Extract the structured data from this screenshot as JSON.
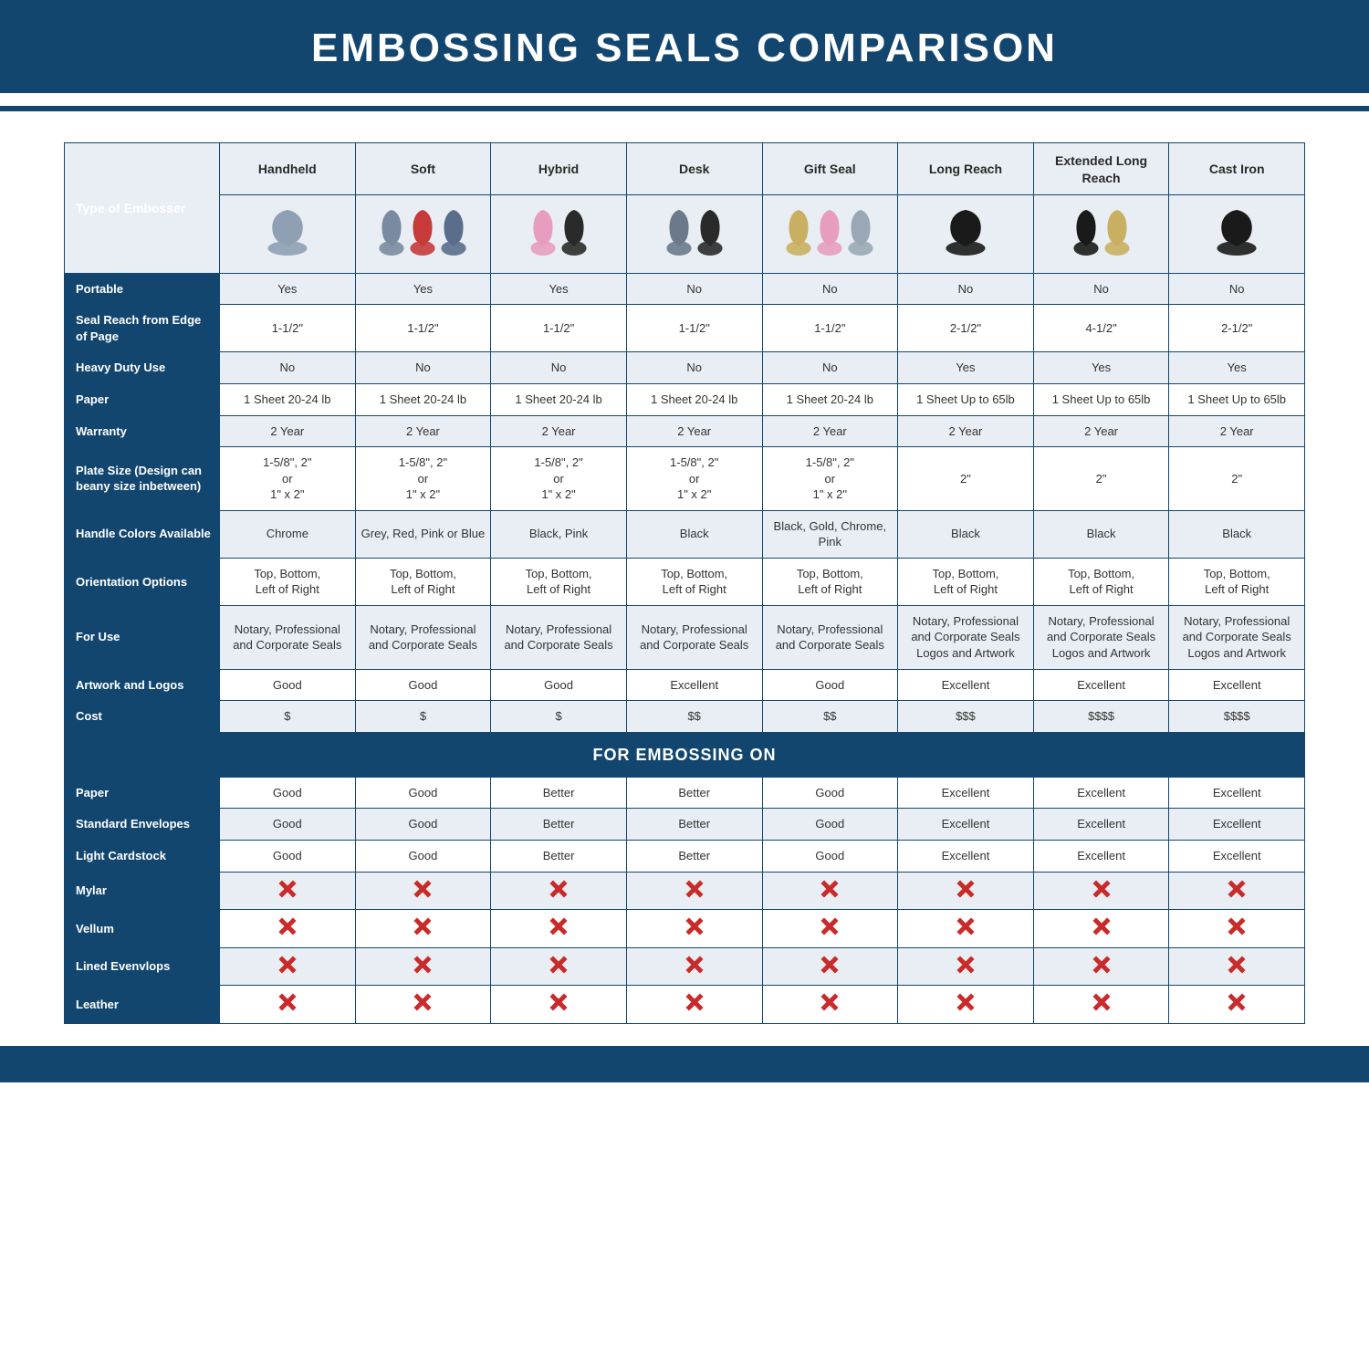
{
  "title": "EMBOSSING SEALS COMPARISON",
  "colors": {
    "header_bg": "#12466f",
    "header_text": "#ffffff",
    "row_alt_bg": "#e8eef3",
    "row_bg": "#ffffff",
    "border": "#12466f",
    "x_color": "#c92a2a"
  },
  "columns": [
    "Handheld",
    "Soft",
    "Hybrid",
    "Desk",
    "Gift Seal",
    "Long Reach",
    "Extended Long Reach",
    "Cast Iron"
  ],
  "product_icon_colors": [
    [
      "#8fa0b5"
    ],
    [
      "#7a8aa0",
      "#c63a3a",
      "#5a6e8c"
    ],
    [
      "#e89cc0",
      "#2a2a2a"
    ],
    [
      "#6a7a8a",
      "#2a2a2a"
    ],
    [
      "#c9b060",
      "#e89cc0",
      "#9aa8b5"
    ],
    [
      "#1a1a1a"
    ],
    [
      "#1a1a1a",
      "#c9b060"
    ],
    [
      "#1a1a1a"
    ]
  ],
  "row_labels": {
    "type": "Type of Embosser",
    "portable": "Portable",
    "reach": "Seal Reach from Edge of Page",
    "heavy": "Heavy Duty Use",
    "paper": "Paper",
    "warranty": "Warranty",
    "plate": "Plate Size (Design can beany size inbetween)",
    "handle": "Handle Colors Available",
    "orient": "Orientation Options",
    "foruse": "For Use",
    "artwork": "Artwork and Logos",
    "cost": "Cost"
  },
  "section_title": "FOR EMBOSSING ON",
  "row_labels2": {
    "paper2": "Paper",
    "env": "Standard Envelopes",
    "card": "Light Cardstock",
    "mylar": "Mylar",
    "vellum": "Vellum",
    "lined": "Lined Evenvlops",
    "leather": "Leather"
  },
  "rows": {
    "portable": [
      "Yes",
      "Yes",
      "Yes",
      "No",
      "No",
      "No",
      "No",
      "No"
    ],
    "reach": [
      "1-1/2\"",
      "1-1/2\"",
      "1-1/2\"",
      "1-1/2\"",
      "1-1/2\"",
      "2-1/2\"",
      "4-1/2\"",
      "2-1/2\""
    ],
    "heavy": [
      "No",
      "No",
      "No",
      "No",
      "No",
      "Yes",
      "Yes",
      "Yes"
    ],
    "paper": [
      "1 Sheet 20-24 lb",
      "1 Sheet 20-24 lb",
      "1 Sheet 20-24 lb",
      "1 Sheet 20-24 lb",
      "1 Sheet 20-24 lb",
      "1 Sheet Up to 65lb",
      "1 Sheet Up to 65lb",
      "1 Sheet Up to 65lb"
    ],
    "warranty": [
      "2 Year",
      "2 Year",
      "2 Year",
      "2 Year",
      "2 Year",
      "2 Year",
      "2 Year",
      "2 Year"
    ],
    "plate": [
      "1-5/8\", 2\"\nor\n1\" x 2\"",
      "1-5/8\", 2\"\nor\n1\" x 2\"",
      "1-5/8\", 2\"\nor\n1\" x 2\"",
      "1-5/8\", 2\"\nor\n1\" x 2\"",
      "1-5/8\", 2\"\nor\n1\" x 2\"",
      "2\"",
      "2\"",
      "2\""
    ],
    "handle": [
      "Chrome",
      "Grey, Red, Pink or Blue",
      "Black, Pink",
      "Black",
      "Black, Gold, Chrome, Pink",
      "Black",
      "Black",
      "Black"
    ],
    "orient": [
      "Top, Bottom,\nLeft of Right",
      "Top, Bottom,\nLeft of Right",
      "Top, Bottom,\nLeft of Right",
      "Top, Bottom,\nLeft of Right",
      "Top, Bottom,\nLeft of Right",
      "Top, Bottom,\nLeft of Right",
      "Top, Bottom,\nLeft of Right",
      "Top, Bottom,\nLeft of Right"
    ],
    "foruse": [
      "Notary, Professional and Corporate Seals",
      "Notary, Professional and Corporate Seals",
      "Notary, Professional and Corporate Seals",
      "Notary, Professional and Corporate Seals",
      "Notary, Professional and Corporate Seals",
      "Notary, Professional and Corporate Seals Logos and Artwork",
      "Notary, Professional and Corporate Seals Logos and Artwork",
      "Notary, Professional and Corporate Seals Logos and Artwork"
    ],
    "artwork": [
      "Good",
      "Good",
      "Good",
      "Excellent",
      "Good",
      "Excellent",
      "Excellent",
      "Excellent"
    ],
    "cost": [
      "$",
      "$",
      "$",
      "$$",
      "$$",
      "$$$",
      "$$$$",
      "$$$$"
    ],
    "paper2": [
      "Good",
      "Good",
      "Better",
      "Better",
      "Good",
      "Excellent",
      "Excellent",
      "Excellent"
    ],
    "env": [
      "Good",
      "Good",
      "Better",
      "Better",
      "Good",
      "Excellent",
      "Excellent",
      "Excellent"
    ],
    "card": [
      "Good",
      "Good",
      "Better",
      "Better",
      "Good",
      "Excellent",
      "Excellent",
      "Excellent"
    ],
    "mylar": [
      "X",
      "X",
      "X",
      "X",
      "X",
      "X",
      "X",
      "X"
    ],
    "vellum": [
      "X",
      "X",
      "X",
      "X",
      "X",
      "X",
      "X",
      "X"
    ],
    "lined": [
      "X",
      "X",
      "X",
      "X",
      "X",
      "X",
      "X",
      "X"
    ],
    "leather": [
      "X",
      "X",
      "X",
      "X",
      "X",
      "X",
      "X",
      "X"
    ]
  },
  "alt_rows": [
    "portable",
    "heavy",
    "warranty",
    "handle",
    "foruse",
    "cost",
    "env",
    "mylar",
    "lined"
  ]
}
